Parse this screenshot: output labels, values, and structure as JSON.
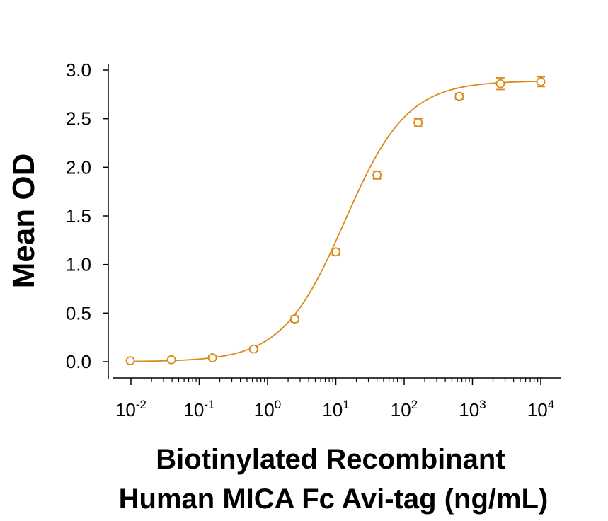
{
  "chart_data": {
    "type": "scatter",
    "title": "",
    "ylabel": "Mean OD",
    "xlabel_lines": [
      "Biotinylated Recombinant",
      "Human MICA Fc Avi-tag (ng/mL)"
    ],
    "x_scale": "log",
    "xlim": [
      0.0067,
      13000
    ],
    "ylim": [
      -0.12,
      3.07
    ],
    "y_ticks": [
      {
        "value": 0.0,
        "label": "0.0"
      },
      {
        "value": 0.5,
        "label": "0.5"
      },
      {
        "value": 1.0,
        "label": "1.0"
      },
      {
        "value": 1.5,
        "label": "1.5"
      },
      {
        "value": 2.0,
        "label": "2.0"
      },
      {
        "value": 2.5,
        "label": "2.5"
      },
      {
        "value": 3.0,
        "label": "3.0"
      }
    ],
    "x_ticks": [
      {
        "value": 0.01,
        "base": "10",
        "exp": "-2"
      },
      {
        "value": 0.1,
        "base": "10",
        "exp": "-1"
      },
      {
        "value": 1,
        "base": "10",
        "exp": "0"
      },
      {
        "value": 10,
        "base": "10",
        "exp": "1"
      },
      {
        "value": 100,
        "base": "10",
        "exp": "2"
      },
      {
        "value": 1000,
        "base": "10",
        "exp": "3"
      },
      {
        "value": 10000,
        "base": "10",
        "exp": "4"
      }
    ],
    "grid": false,
    "legend": "none",
    "color": "#d98a18",
    "series": [
      {
        "x": [
          0.00977,
          0.0391,
          0.156,
          0.625,
          2.5,
          10,
          40,
          160,
          640,
          2560,
          10000
        ],
        "y": [
          0.01,
          0.02,
          0.04,
          0.13,
          0.44,
          1.13,
          1.92,
          2.46,
          2.73,
          2.86,
          2.88
        ],
        "err": [
          0.01,
          0.01,
          0.02,
          0.02,
          0.03,
          0.03,
          0.04,
          0.04,
          0.03,
          0.06,
          0.05
        ]
      }
    ],
    "fit_curve": {
      "model": "4PL",
      "bottom": 0.0,
      "top": 2.89,
      "ec50": 13.5,
      "hill": 0.95
    }
  }
}
